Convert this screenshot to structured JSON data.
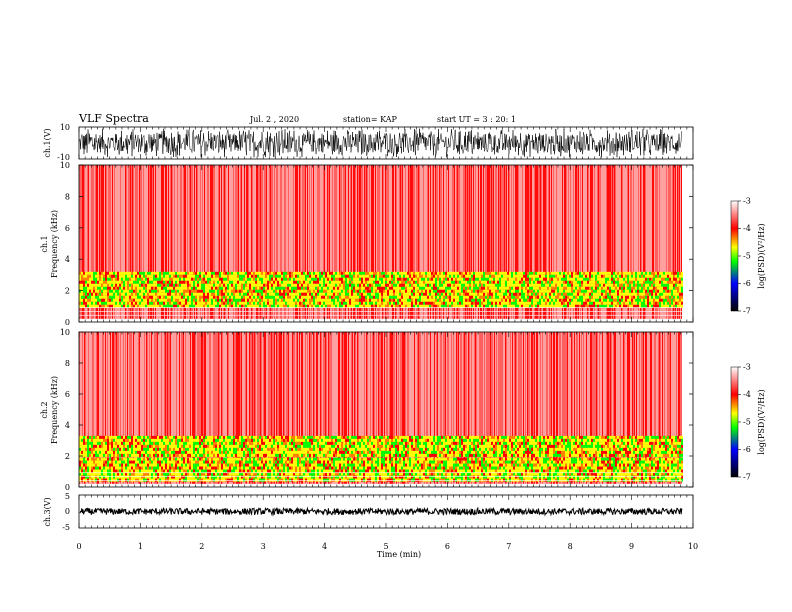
{
  "header": {
    "title": "VLF Spectra",
    "date": "Jul. 2 , 2020",
    "station": "station= KAP",
    "start": "start UT =  3 : 20: 1"
  },
  "colors": {
    "spectrum": [
      "#ffffff",
      "#ff0000",
      "#ffff00",
      "#00ff00",
      "#0000ff",
      "#000000"
    ],
    "waveform": "#000000"
  },
  "chart_data": [
    {
      "type": "line",
      "panel": "ch1-waveform",
      "ylabel": "ch.1(V)",
      "ylim": [
        -10,
        10
      ],
      "y_ticks": [
        "10",
        "-10"
      ],
      "description_values": {
        "amplitude_range": [
          -10,
          10
        ]
      }
    },
    {
      "type": "heatmap",
      "panel": "ch1-spectrogram",
      "ylabel_line1": "ch.1",
      "ylabel_line2": "Frequency (kHz)",
      "ylim": [
        0,
        10
      ],
      "y_ticks": [
        "0",
        "2",
        "4",
        "6",
        "8",
        "10"
      ],
      "intense_bands_khz": [
        [
          1.0,
          3.2
        ]
      ],
      "colorbar": {
        "label": "log(PSD)(V²/Hz)",
        "range": [
          -7,
          -3
        ],
        "ticks": [
          "-3",
          "-4",
          "-5",
          "-6",
          "-7"
        ]
      }
    },
    {
      "type": "heatmap",
      "panel": "ch2-spectrogram",
      "ylabel_line1": "ch.2",
      "ylabel_line2": "Frequency (kHz)",
      "ylim": [
        0,
        10
      ],
      "y_ticks": [
        "0",
        "2",
        "4",
        "6",
        "8",
        "10"
      ],
      "intense_bands_khz": [
        [
          0.5,
          1.9
        ],
        [
          2.1,
          3.3
        ]
      ],
      "colorbar": {
        "label": "log(PSD)(V²/Hz)",
        "range": [
          -7,
          -3
        ],
        "ticks": [
          "-3",
          "-4",
          "-5",
          "-6",
          "-7"
        ]
      }
    },
    {
      "type": "line",
      "panel": "ch3-waveform",
      "ylabel": "ch.3(V)",
      "ylim": [
        -5,
        5
      ],
      "y_ticks": [
        "5",
        "0",
        "-5"
      ],
      "description_values": {
        "amplitude_range": [
          -1,
          1
        ]
      }
    }
  ],
  "x_axis": {
    "label": "Time (min)",
    "xlim": [
      0,
      10
    ],
    "ticks": [
      "0",
      "1",
      "2",
      "3",
      "4",
      "5",
      "6",
      "7",
      "8",
      "9",
      "10"
    ]
  }
}
